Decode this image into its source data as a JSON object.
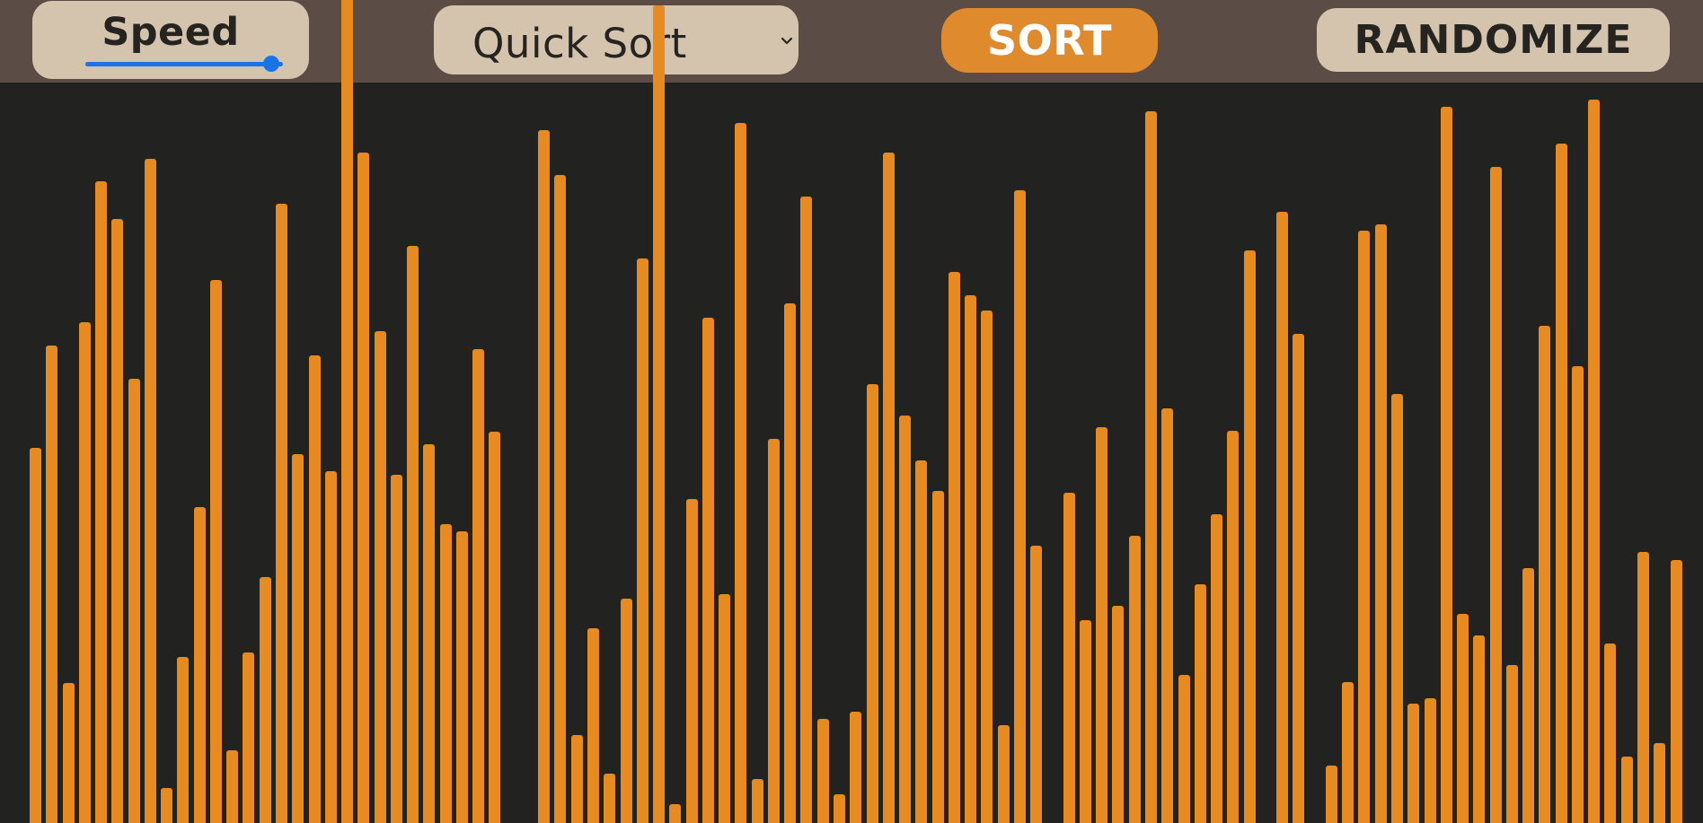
{
  "toolbar": {
    "speed_label": "Speed",
    "speed_value": 0.94,
    "algorithm": "Quick Sort",
    "sort_label": "SORT",
    "randomize_label": "RANDOMIZE"
  },
  "colors": {
    "toolbar_bg": "#5b4d45",
    "canvas_bg": "#222220",
    "bar": "#e78a20",
    "button_accent": "#e08a2e",
    "pill_bg": "#d5c4ad",
    "slider": "#1a74e8"
  },
  "icons": {
    "dropdown": "chevron-down-icon"
  },
  "bars": [
    418,
    532,
    156,
    558,
    715,
    673,
    495,
    740,
    39,
    185,
    352,
    605,
    81,
    190,
    274,
    690,
    411,
    521,
    392,
    959,
    747,
    548,
    388,
    643,
    422,
    333,
    325,
    528,
    436,
    0,
    0,
    772,
    722,
    98,
    217,
    55,
    250,
    629,
    911,
    21,
    361,
    563,
    255,
    780,
    49,
    428,
    579,
    698,
    116,
    32,
    124,
    489,
    747,
    454,
    404,
    370,
    614,
    588,
    571,
    109,
    705,
    309,
    0,
    368,
    226,
    441,
    242,
    320,
    793,
    462,
    165,
    266,
    344,
    437,
    638,
    0,
    681,
    545,
    0,
    64,
    157,
    660,
    667,
    478,
    133,
    139,
    798,
    233,
    209,
    731,
    176,
    284,
    554,
    757,
    509,
    806,
    200,
    74,
    302,
    89,
    293
  ]
}
